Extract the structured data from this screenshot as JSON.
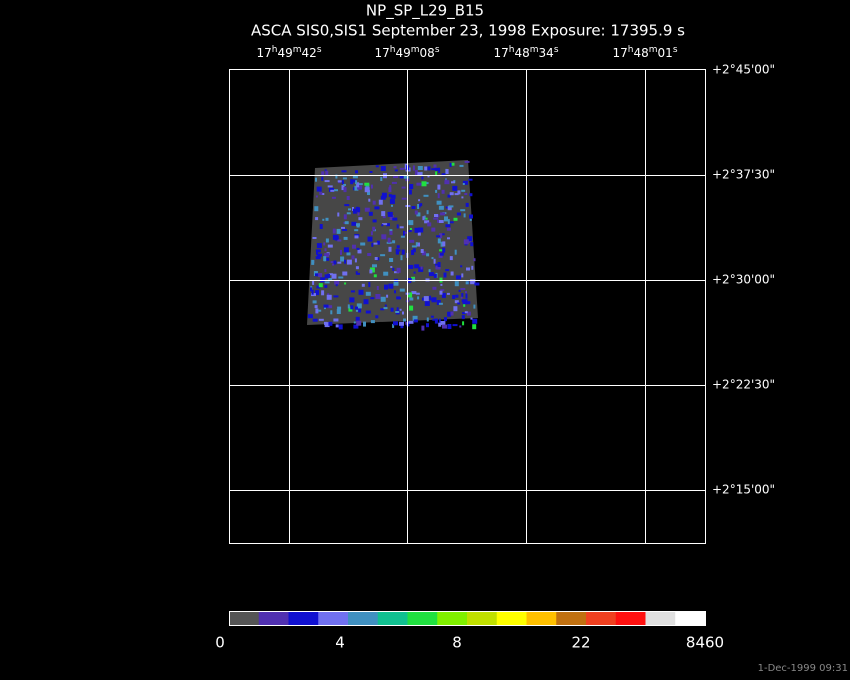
{
  "title": "NP_SP_L29_B15",
  "subtitle": "ASCA SIS0,SIS1 September 23, 1998 Exposure: 17395.9 s",
  "ra_labels": [
    [
      "17",
      "h",
      "49",
      "m",
      "42",
      "s"
    ],
    [
      "17",
      "h",
      "49",
      "m",
      "08",
      "s"
    ],
    [
      "17",
      "h",
      "48",
      "m",
      "34",
      "s"
    ],
    [
      "17",
      "h",
      "48",
      "m",
      "01",
      "s"
    ]
  ],
  "dec_labels": [
    "+2°45'00\"",
    "+2°37'30\"",
    "+2°30'00\"",
    "+2°22'30\"",
    "+2°15'00\""
  ],
  "colorbar_labels": [
    "0",
    "4",
    "8",
    "22",
    "8460"
  ],
  "footer": "1-Dec-1999 09:31"
}
